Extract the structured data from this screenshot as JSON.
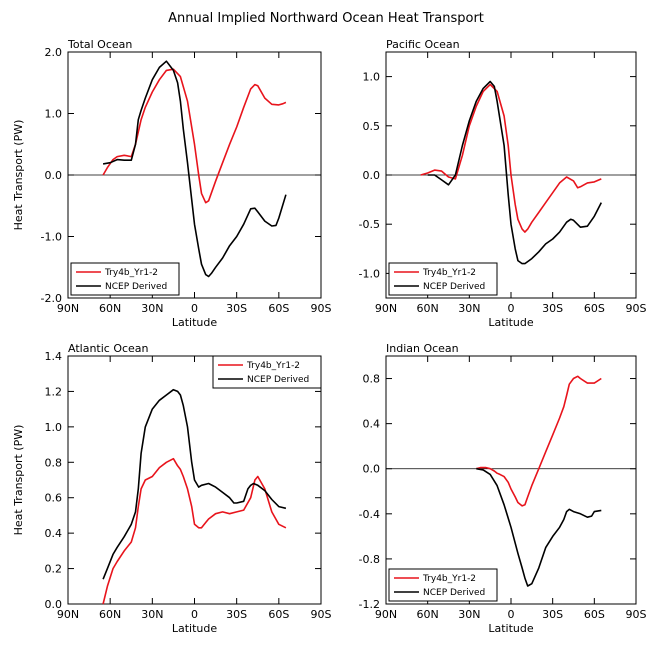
{
  "figure_title": "Annual Implied Northward Ocean Heat Transport",
  "chart_data": [
    {
      "type": "line",
      "title": "Total Ocean",
      "xlabel": "Latitude",
      "ylabel": "Heat Transport (PW)",
      "xlim": [
        90,
        -90
      ],
      "ylim": [
        -2.0,
        2.0
      ],
      "x_ticks": [
        90,
        60,
        30,
        0,
        -30,
        -60,
        -90
      ],
      "x_tick_labels": [
        "90N",
        "60N",
        "30N",
        "0",
        "30S",
        "60S",
        "90S"
      ],
      "y_ticks": [
        -2.0,
        -1.0,
        0.0,
        1.0,
        2.0
      ],
      "y_tick_labels": [
        "-2.0",
        "-1.0",
        "0.0",
        "1.0",
        "2.0"
      ],
      "zero_line": true,
      "legend_position": "bottom-left",
      "series": [
        {
          "name": "Try4b_Yr1-2",
          "color": "#e8141c",
          "x": [
            65,
            62,
            58,
            55,
            50,
            45,
            42,
            38,
            35,
            30,
            25,
            20,
            15,
            10,
            5,
            0,
            -3,
            -5,
            -8,
            -10,
            -15,
            -20,
            -25,
            -30,
            -35,
            -40,
            -43,
            -45,
            -50,
            -55,
            -60,
            -63,
            -65
          ],
          "y": [
            0.0,
            0.12,
            0.25,
            0.3,
            0.32,
            0.3,
            0.5,
            0.9,
            1.1,
            1.35,
            1.55,
            1.7,
            1.72,
            1.6,
            1.2,
            0.5,
            0.0,
            -0.3,
            -0.45,
            -0.42,
            -0.1,
            0.2,
            0.5,
            0.78,
            1.1,
            1.4,
            1.47,
            1.45,
            1.25,
            1.15,
            1.14,
            1.16,
            1.18
          ]
        },
        {
          "name": "NCEP Derived",
          "color": "#000000",
          "x": [
            65,
            60,
            55,
            50,
            45,
            42,
            40,
            38,
            35,
            30,
            25,
            20,
            15,
            12,
            10,
            8,
            5,
            2,
            0,
            -3,
            -5,
            -8,
            -10,
            -12,
            -15,
            -20,
            -25,
            -30,
            -35,
            -40,
            -43,
            -45,
            -50,
            -55,
            -58,
            -60,
            -65
          ],
          "y": [
            0.18,
            0.2,
            0.25,
            0.24,
            0.24,
            0.5,
            0.9,
            1.05,
            1.25,
            1.55,
            1.75,
            1.85,
            1.7,
            1.5,
            1.2,
            0.75,
            0.2,
            -0.4,
            -0.8,
            -1.2,
            -1.45,
            -1.62,
            -1.65,
            -1.6,
            -1.5,
            -1.35,
            -1.15,
            -1.0,
            -0.8,
            -0.55,
            -0.54,
            -0.6,
            -0.75,
            -0.83,
            -0.82,
            -0.7,
            -0.32
          ]
        }
      ]
    },
    {
      "type": "line",
      "title": "Pacific Ocean",
      "xlabel": "Latitude",
      "ylabel": "",
      "xlim": [
        90,
        -90
      ],
      "ylim": [
        -1.25,
        1.25
      ],
      "x_ticks": [
        90,
        60,
        30,
        0,
        -30,
        -60,
        -90
      ],
      "x_tick_labels": [
        "90N",
        "60N",
        "30N",
        "0",
        "30S",
        "60S",
        "90S"
      ],
      "y_ticks": [
        -1.0,
        -0.5,
        0.0,
        0.5,
        1.0
      ],
      "y_tick_labels": [
        "-1.0",
        "-0.5",
        "0.0",
        "0.5",
        "1.0"
      ],
      "zero_line": true,
      "legend_position": "bottom-left",
      "series": [
        {
          "name": "Try4b_Yr1-2",
          "color": "#e8141c",
          "x": [
            65,
            60,
            55,
            50,
            45,
            40,
            35,
            30,
            25,
            20,
            15,
            10,
            5,
            2,
            0,
            -3,
            -5,
            -8,
            -10,
            -12,
            -15,
            -20,
            -25,
            -30,
            -35,
            -40,
            -45,
            -48,
            -50,
            -55,
            -60,
            -65
          ],
          "y": [
            0.0,
            0.02,
            0.05,
            0.04,
            -0.02,
            -0.04,
            0.2,
            0.5,
            0.7,
            0.85,
            0.92,
            0.85,
            0.6,
            0.3,
            0.0,
            -0.3,
            -0.45,
            -0.55,
            -0.58,
            -0.55,
            -0.48,
            -0.38,
            -0.28,
            -0.18,
            -0.08,
            -0.02,
            -0.06,
            -0.13,
            -0.12,
            -0.08,
            -0.07,
            -0.04
          ]
        },
        {
          "name": "NCEP Derived",
          "color": "#000000",
          "x": [
            60,
            55,
            50,
            45,
            40,
            35,
            30,
            25,
            20,
            15,
            12,
            10,
            5,
            2,
            0,
            -3,
            -5,
            -8,
            -10,
            -15,
            -20,
            -25,
            -30,
            -35,
            -40,
            -43,
            -45,
            -50,
            -55,
            -60,
            -65
          ],
          "y": [
            0.0,
            0.0,
            -0.05,
            -0.1,
            0.0,
            0.3,
            0.55,
            0.75,
            0.88,
            0.95,
            0.9,
            0.75,
            0.3,
            -0.2,
            -0.5,
            -0.75,
            -0.87,
            -0.9,
            -0.9,
            -0.85,
            -0.78,
            -0.7,
            -0.65,
            -0.58,
            -0.48,
            -0.45,
            -0.46,
            -0.53,
            -0.52,
            -0.42,
            -0.28
          ]
        }
      ]
    },
    {
      "type": "line",
      "title": "Atlantic Ocean",
      "xlabel": "Latitude",
      "ylabel": "Heat Transport (PW)",
      "xlim": [
        90,
        -90
      ],
      "ylim": [
        0.0,
        1.4
      ],
      "x_ticks": [
        90,
        60,
        30,
        0,
        -30,
        -60,
        -90
      ],
      "x_tick_labels": [
        "90N",
        "60N",
        "30N",
        "0",
        "30S",
        "60S",
        "90S"
      ],
      "y_ticks": [
        0.0,
        0.2,
        0.4,
        0.6,
        0.8,
        1.0,
        1.2,
        1.4
      ],
      "y_tick_labels": [
        "0.0",
        "0.2",
        "0.4",
        "0.6",
        "0.8",
        "1.0",
        "1.2",
        "1.4"
      ],
      "zero_line": false,
      "legend_position": "top-right",
      "series": [
        {
          "name": "Try4b_Yr1-2",
          "color": "#e8141c",
          "x": [
            65,
            62,
            58,
            55,
            50,
            45,
            42,
            40,
            38,
            35,
            30,
            25,
            20,
            15,
            12,
            10,
            8,
            5,
            2,
            0,
            -3,
            -5,
            -8,
            -10,
            -15,
            -20,
            -25,
            -30,
            -35,
            -40,
            -43,
            -45,
            -50,
            -55,
            -60,
            -65
          ],
          "y": [
            0.0,
            0.1,
            0.2,
            0.24,
            0.3,
            0.35,
            0.43,
            0.55,
            0.65,
            0.7,
            0.72,
            0.77,
            0.8,
            0.82,
            0.78,
            0.76,
            0.72,
            0.65,
            0.55,
            0.45,
            0.43,
            0.43,
            0.46,
            0.48,
            0.51,
            0.52,
            0.51,
            0.52,
            0.53,
            0.6,
            0.7,
            0.72,
            0.65,
            0.52,
            0.45,
            0.43
          ]
        },
        {
          "name": "NCEP Derived",
          "color": "#000000",
          "x": [
            65,
            62,
            58,
            55,
            50,
            45,
            42,
            40,
            38,
            35,
            30,
            25,
            20,
            15,
            12,
            10,
            8,
            5,
            2,
            0,
            -3,
            -5,
            -10,
            -15,
            -20,
            -25,
            -28,
            -30,
            -35,
            -38,
            -40,
            -42,
            -45,
            -50,
            -55,
            -60,
            -65
          ],
          "y": [
            0.14,
            0.2,
            0.28,
            0.32,
            0.38,
            0.45,
            0.52,
            0.65,
            0.85,
            1.0,
            1.1,
            1.15,
            1.18,
            1.21,
            1.2,
            1.18,
            1.12,
            1.0,
            0.8,
            0.7,
            0.66,
            0.67,
            0.68,
            0.66,
            0.63,
            0.6,
            0.57,
            0.57,
            0.58,
            0.65,
            0.67,
            0.68,
            0.67,
            0.64,
            0.59,
            0.55,
            0.54
          ]
        }
      ]
    },
    {
      "type": "line",
      "title": "Indian Ocean",
      "xlabel": "Latitude",
      "ylabel": "",
      "xlim": [
        90,
        -90
      ],
      "ylim": [
        -1.2,
        1.0
      ],
      "x_ticks": [
        90,
        60,
        30,
        0,
        -30,
        -60,
        -90
      ],
      "x_tick_labels": [
        "90N",
        "60N",
        "30N",
        "0",
        "30S",
        "60S",
        "90S"
      ],
      "y_ticks": [
        -1.2,
        -0.8,
        -0.4,
        0.0,
        0.4,
        0.8
      ],
      "y_tick_labels": [
        "-1.2",
        "-0.8",
        "-0.4",
        "0.0",
        "0.4",
        "0.8"
      ],
      "zero_line": true,
      "legend_position": "bottom-left",
      "series": [
        {
          "name": "Try4b_Yr1-2",
          "color": "#e8141c",
          "x": [
            25,
            22,
            20,
            18,
            15,
            12,
            10,
            8,
            5,
            2,
            0,
            -3,
            -5,
            -8,
            -10,
            -12,
            -15,
            -20,
            -25,
            -30,
            -35,
            -38,
            -40,
            -42,
            -45,
            -48,
            -50,
            -55,
            -60,
            -65
          ],
          "y": [
            0.0,
            0.01,
            0.01,
            0.01,
            0.0,
            -0.02,
            -0.04,
            -0.05,
            -0.07,
            -0.12,
            -0.18,
            -0.25,
            -0.3,
            -0.33,
            -0.32,
            -0.25,
            -0.15,
            0.0,
            0.15,
            0.3,
            0.45,
            0.55,
            0.65,
            0.75,
            0.8,
            0.82,
            0.8,
            0.76,
            0.76,
            0.8
          ]
        },
        {
          "name": "NCEP Derived",
          "color": "#000000",
          "x": [
            25,
            20,
            15,
            10,
            5,
            0,
            -5,
            -8,
            -10,
            -12,
            -15,
            -20,
            -25,
            -30,
            -35,
            -38,
            -40,
            -42,
            -45,
            -50,
            -55,
            -58,
            -60,
            -65
          ],
          "y": [
            0.0,
            -0.01,
            -0.05,
            -0.15,
            -0.32,
            -0.52,
            -0.75,
            -0.88,
            -0.97,
            -1.04,
            -1.02,
            -0.88,
            -0.7,
            -0.6,
            -0.52,
            -0.45,
            -0.38,
            -0.36,
            -0.38,
            -0.4,
            -0.43,
            -0.42,
            -0.38,
            -0.37
          ]
        }
      ]
    }
  ]
}
